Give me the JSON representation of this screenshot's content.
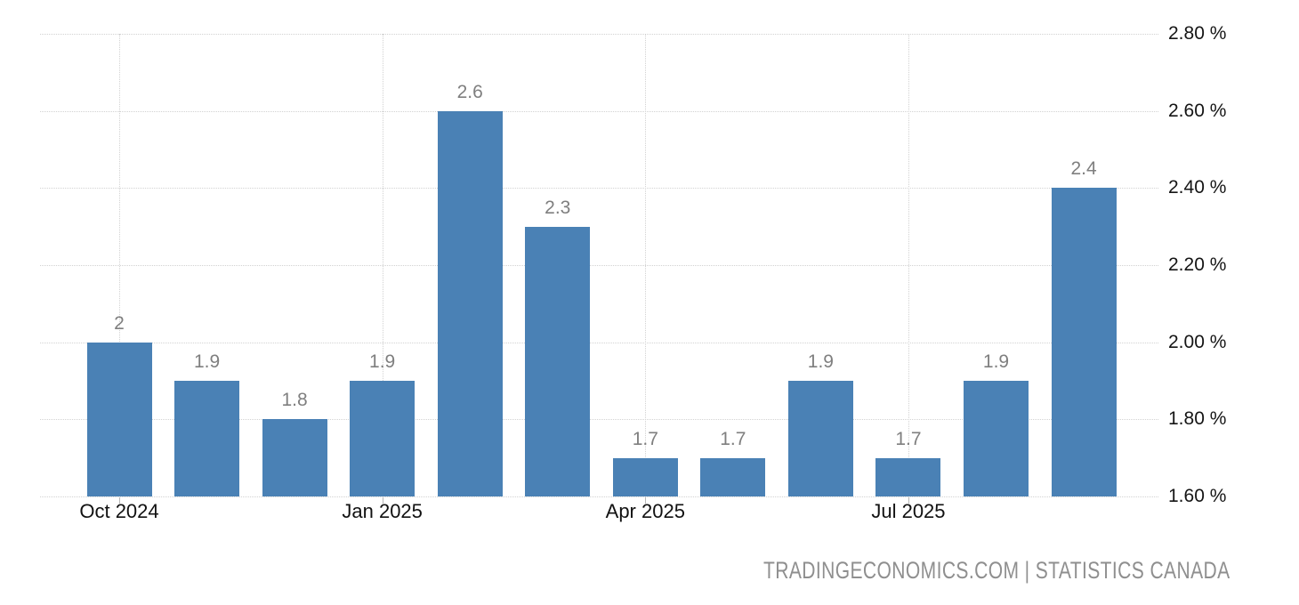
{
  "chart_data": {
    "type": "bar",
    "title": "",
    "values": [
      2,
      1.9,
      1.8,
      1.9,
      2.6,
      2.3,
      1.7,
      1.7,
      1.9,
      1.7,
      1.9,
      2.4
    ],
    "bar_value_labels": [
      "2",
      "1.9",
      "1.8",
      "1.9",
      "2.6",
      "2.3",
      "1.7",
      "1.7",
      "1.9",
      "1.7",
      "1.9",
      "2.4"
    ],
    "x_axis": {
      "tick_labels": [
        {
          "bar_index": 0,
          "label": "Oct 2024"
        },
        {
          "bar_index": 3,
          "label": "Jan 2025"
        },
        {
          "bar_index": 6,
          "label": "Apr 2025"
        },
        {
          "bar_index": 9,
          "label": "Jul 2025"
        }
      ]
    },
    "y_axis": {
      "min": 1.6,
      "max": 2.8,
      "tick_values": [
        2.8,
        2.6,
        2.4,
        2.2,
        2.0,
        1.8,
        1.6
      ],
      "tick_labels": [
        "2.80 %",
        "2.60 %",
        "2.40 %",
        "2.20 %",
        "2.00 %",
        "1.80 %",
        "1.60 %"
      ],
      "side": "right"
    },
    "grid": {
      "horizontal": true,
      "vertical": true,
      "style": "dotted"
    },
    "legend": "none",
    "colors": {
      "bar": "#4a81b5",
      "value_label": "#7f7f7f",
      "x_label": "#111111",
      "y_label": "#151515",
      "grid": "#d2d2d2",
      "tick": "#b8b8b8",
      "attribution": "#8f8f8f",
      "background": "#ffffff"
    },
    "attribution": "TRADINGECONOMICS.COM | STATISTICS CANADA"
  }
}
